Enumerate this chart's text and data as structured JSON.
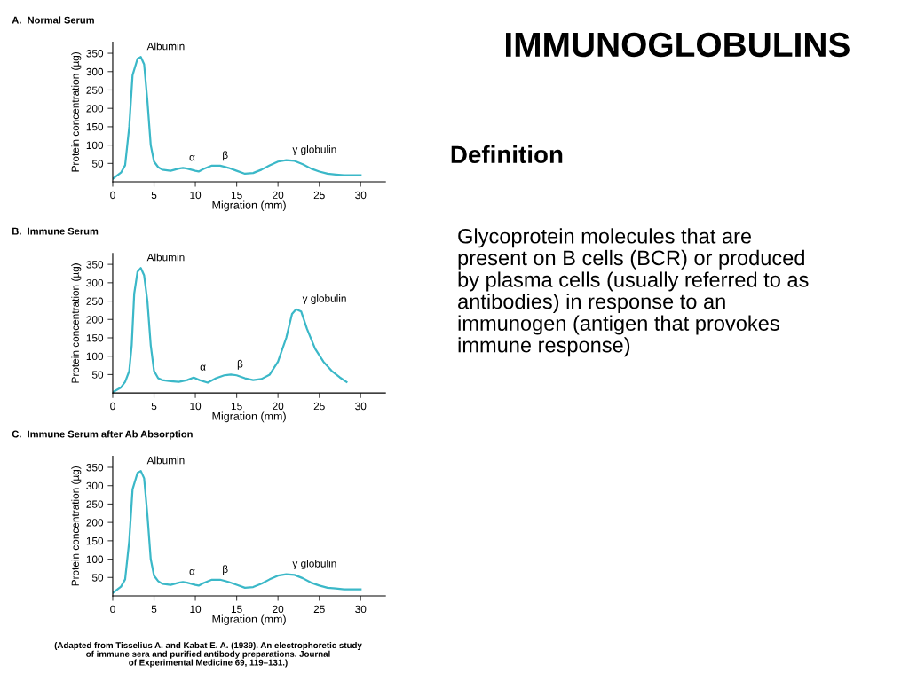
{
  "chart_data": [
    {
      "type": "line",
      "title": "A.  Normal Serum",
      "xlabel": "Migration (mm)",
      "ylabel": "Protein concentration (µg)",
      "xlim": [
        0,
        33
      ],
      "ylim": [
        0,
        380
      ],
      "xticks": [
        0,
        5,
        10,
        15,
        20,
        25,
        30
      ],
      "yticks": [
        50,
        100,
        150,
        200,
        250,
        300,
        350
      ],
      "grid": false,
      "legend": false,
      "marker": "none",
      "line_style": "solid",
      "x": [
        0,
        1,
        1.5,
        2,
        2.4,
        3,
        3.4,
        3.8,
        4.2,
        4.6,
        5,
        5.5,
        6,
        7,
        8,
        8.5,
        9,
        10,
        10.4,
        11,
        12,
        13,
        14,
        15,
        16,
        17,
        18,
        19,
        20,
        21,
        22,
        23,
        24,
        25,
        26,
        27,
        28,
        29,
        30
      ],
      "series": [
        {
          "color": "#3bb8c8",
          "values": [
            8,
            25,
            45,
            150,
            290,
            335,
            340,
            320,
            220,
            100,
            55,
            40,
            33,
            30,
            36,
            38,
            36,
            30,
            28,
            35,
            44,
            44,
            38,
            30,
            22,
            24,
            33,
            45,
            55,
            59,
            57,
            48,
            36,
            28,
            22,
            20,
            18,
            18,
            18
          ]
        }
      ],
      "annotations": [
        {
          "text": "Albumin",
          "x": 3.4,
          "y": 340
        },
        {
          "text": "α",
          "x": 8.5,
          "y": 38
        },
        {
          "text": "β",
          "x": 12.5,
          "y": 44
        },
        {
          "text": "γ globulin",
          "x": 21,
          "y": 59
        }
      ]
    },
    {
      "type": "line",
      "title": "B.  Immune Serum",
      "xlabel": "Migration (mm)",
      "ylabel": "Protein concentration (µg)",
      "xlim": [
        0,
        33
      ],
      "ylim": [
        0,
        380
      ],
      "xticks": [
        0,
        5,
        10,
        15,
        20,
        25,
        30
      ],
      "yticks": [
        50,
        100,
        150,
        200,
        250,
        300,
        350
      ],
      "grid": false,
      "legend": false,
      "marker": "none",
      "line_style": "solid",
      "x": [
        0,
        1,
        1.5,
        2,
        2.3,
        2.6,
        3,
        3.4,
        3.8,
        4.2,
        4.6,
        5,
        5.5,
        6,
        7,
        8,
        9,
        9.8,
        10.5,
        11.5,
        12.5,
        13.5,
        14.3,
        15,
        16,
        17,
        18,
        19,
        20,
        21,
        21.7,
        22.2,
        22.8,
        23.5,
        24.5,
        25.5,
        26.5,
        27.5,
        28.3
      ],
      "series": [
        {
          "color": "#3bb8c8",
          "values": [
            2,
            15,
            30,
            60,
            130,
            270,
            330,
            340,
            320,
            250,
            130,
            60,
            40,
            35,
            32,
            30,
            35,
            42,
            35,
            28,
            40,
            48,
            50,
            48,
            40,
            35,
            38,
            50,
            85,
            150,
            215,
            228,
            222,
            175,
            120,
            85,
            60,
            42,
            30
          ]
        }
      ],
      "annotations": [
        {
          "text": "Albumin",
          "x": 3.4,
          "y": 340
        },
        {
          "text": "α",
          "x": 9.8,
          "y": 42
        },
        {
          "text": "β",
          "x": 14.3,
          "y": 50
        },
        {
          "text": "γ globulin",
          "x": 22.2,
          "y": 228
        }
      ]
    },
    {
      "type": "line",
      "title": "C.  Immune Serum after Ab Absorption",
      "xlabel": "Migration (mm)",
      "ylabel": "Protein concentration (µg)",
      "xlim": [
        0,
        33
      ],
      "ylim": [
        0,
        380
      ],
      "xticks": [
        0,
        5,
        10,
        15,
        20,
        25,
        30
      ],
      "yticks": [
        50,
        100,
        150,
        200,
        250,
        300,
        350
      ],
      "grid": false,
      "legend": false,
      "marker": "none",
      "line_style": "solid",
      "x": [
        0,
        1,
        1.5,
        2,
        2.4,
        3,
        3.4,
        3.8,
        4.2,
        4.6,
        5,
        5.5,
        6,
        7,
        8,
        8.5,
        9,
        10,
        10.4,
        11,
        12,
        13,
        14,
        15,
        16,
        17,
        18,
        19,
        20,
        21,
        22,
        23,
        24,
        25,
        26,
        27,
        28,
        29,
        30
      ],
      "series": [
        {
          "color": "#3bb8c8",
          "values": [
            8,
            25,
            45,
            150,
            290,
            335,
            340,
            320,
            220,
            100,
            55,
            40,
            33,
            30,
            36,
            38,
            36,
            30,
            28,
            35,
            44,
            44,
            38,
            30,
            22,
            24,
            33,
            45,
            55,
            59,
            57,
            48,
            36,
            28,
            22,
            20,
            18,
            18,
            18
          ]
        }
      ],
      "annotations": [
        {
          "text": "Albumin",
          "x": 3.4,
          "y": 340
        },
        {
          "text": "α",
          "x": 8.5,
          "y": 38
        },
        {
          "text": "β",
          "x": 12.5,
          "y": 44
        },
        {
          "text": "γ globulin",
          "x": 21,
          "y": 59
        },
        "(Adapted from Tisselius A. and Kabat E. A. (1939). An electrophoretic study\nof immune sera and purified antibody preparations. Journal\nof Experimental Medicine 69, 119–131.)"
      ]
    },
    {
      "type": "other",
      "title": "IMMUNOGLOBULINS",
      "subtitle": "Definition",
      "annotations": [
        "Glycoprotein molecules that are\npresent on B cells (BCR) or produced\nby plasma cells (usually referred to as\nantibodies) in response to an\nimmunogen (antigen that provokes\nimmune response)"
      ]
    }
  ]
}
